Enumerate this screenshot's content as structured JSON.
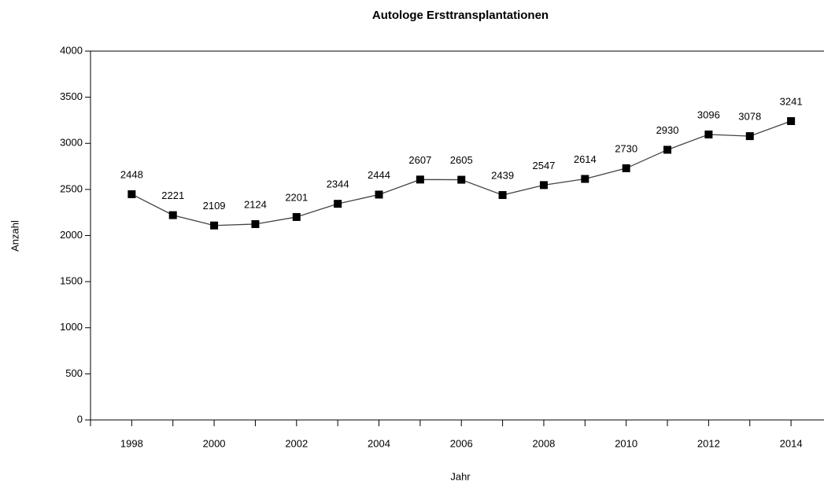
{
  "chart_data": {
    "type": "line",
    "title": "Autologe Ersttransplantationen",
    "x_label": "Jahr",
    "y_label": "Anzahl",
    "x": [
      1998,
      1999,
      2000,
      2001,
      2002,
      2003,
      2004,
      2005,
      2006,
      2007,
      2008,
      2009,
      2010,
      2011,
      2012,
      2013,
      2014
    ],
    "series": [
      {
        "color": "#000000",
        "values": [
          2448,
          2221,
          2109,
          2124,
          2201,
          2344,
          2444,
          2607,
          2605,
          2439,
          2547,
          2614,
          2730,
          2930,
          3096,
          3078,
          3241
        ]
      }
    ],
    "xlim": [
      1997,
      2014.8
    ],
    "xticks": [
      1998,
      2000,
      2002,
      2004,
      2006,
      2008,
      2010,
      2012,
      2014
    ],
    "xminor_ticks": [
      1997,
      1999,
      2001,
      2003,
      2005,
      2007,
      2009,
      2011,
      2013
    ],
    "ylim": [
      0,
      4000
    ],
    "yticks": [
      0,
      500,
      1000,
      1500,
      2000,
      2500,
      3000,
      3500,
      4000
    ]
  }
}
